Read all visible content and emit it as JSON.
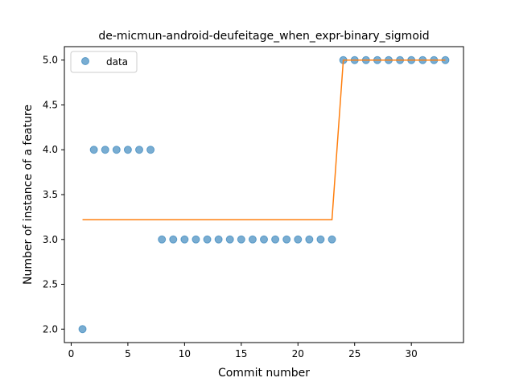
{
  "chart_data": {
    "type": "scatter",
    "title": "de-micmun-android-deufeitage_when_expr-binary_sigmoid",
    "xlabel": "Commit number",
    "ylabel": "Number of instance of a feature",
    "xlim": [
      -0.6,
      34.6
    ],
    "ylim": [
      1.85,
      5.15
    ],
    "xticks": [
      0,
      5,
      10,
      15,
      20,
      25,
      30
    ],
    "xtick_labels": [
      "0",
      "5",
      "10",
      "15",
      "20",
      "25",
      "30"
    ],
    "yticks": [
      2.0,
      2.5,
      3.0,
      3.5,
      4.0,
      4.5,
      5.0
    ],
    "ytick_labels": [
      "2.0",
      "2.5",
      "3.0",
      "3.5",
      "4.0",
      "4.5",
      "5.0"
    ],
    "grid": false,
    "legend_position": "top-left",
    "series": [
      {
        "name": "data",
        "kind": "scatter",
        "color": "#1f77b4",
        "x": [
          1,
          2,
          3,
          4,
          5,
          6,
          7,
          8,
          9,
          10,
          11,
          12,
          13,
          14,
          15,
          16,
          17,
          18,
          19,
          20,
          21,
          22,
          23,
          24,
          25,
          26,
          27,
          28,
          29,
          30,
          31,
          32,
          33
        ],
        "y": [
          2,
          4,
          4,
          4,
          4,
          4,
          4,
          3,
          3,
          3,
          3,
          3,
          3,
          3,
          3,
          3,
          3,
          3,
          3,
          3,
          3,
          3,
          3,
          5,
          5,
          5,
          5,
          5,
          5,
          5,
          5,
          5,
          5
        ]
      },
      {
        "kind": "line",
        "color": "#ff7f0e",
        "x": [
          1,
          22.5,
          23,
          24,
          33
        ],
        "y": [
          3.22,
          3.22,
          3.22,
          5.0,
          5.0
        ]
      }
    ]
  }
}
